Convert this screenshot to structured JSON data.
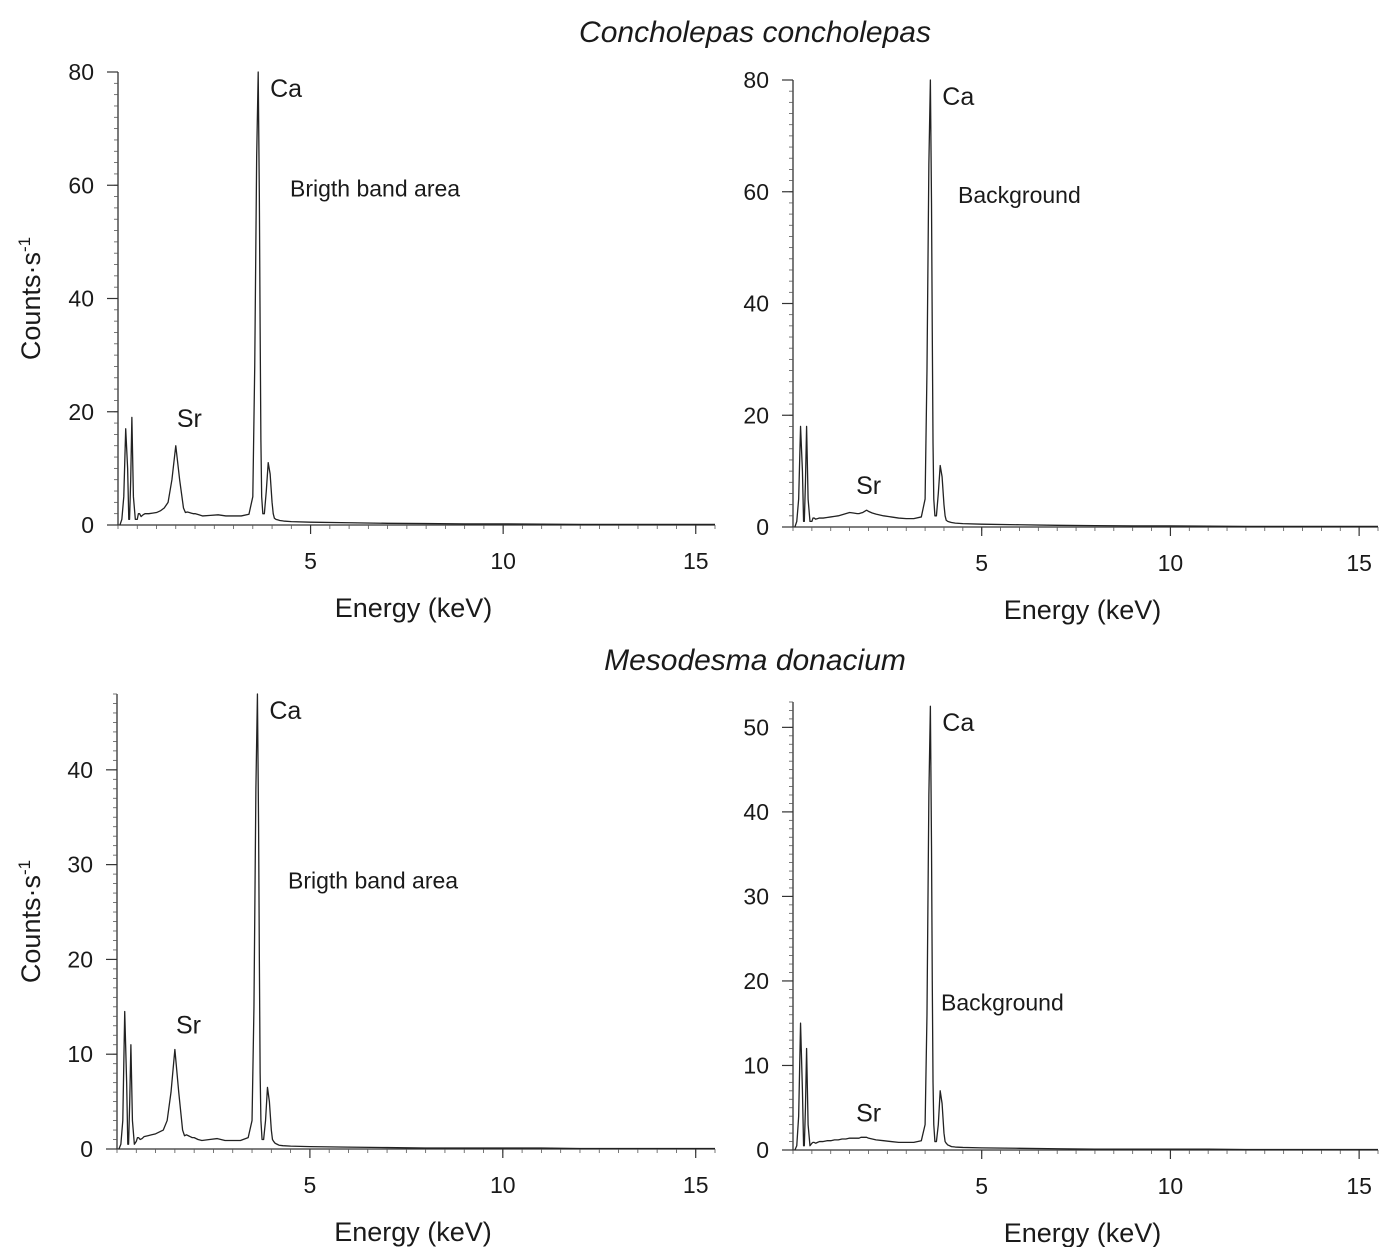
{
  "species_titles": [
    "Concholepas concholepas",
    "Mesodesma donacium"
  ],
  "chart_data": [
    {
      "type": "line",
      "species": "Concholepas concholepas",
      "annotation": "Brigth band area",
      "xlabel": "Energy (keV)",
      "ylabel_main": "Counts·s",
      "ylabel_sup": "-1",
      "xlim": [
        0,
        15.5
      ],
      "ylim": [
        0,
        80
      ],
      "xticks": [
        5,
        10,
        15
      ],
      "yticks": [
        0,
        20,
        40,
        60,
        80
      ],
      "x_minor_step": 0.5,
      "y_minor_step": 2,
      "peak_labels": [
        {
          "text": "Ca",
          "x": 3.69,
          "y": 80
        },
        {
          "text": "Sr",
          "x": 1.8,
          "y": 14.5
        }
      ],
      "x": [
        0.05,
        0.1,
        0.15,
        0.2,
        0.25,
        0.28,
        0.3,
        0.33,
        0.36,
        0.4,
        0.45,
        0.5,
        0.53,
        0.56,
        0.6,
        0.65,
        0.7,
        0.8,
        0.9,
        1.0,
        1.1,
        1.2,
        1.3,
        1.4,
        1.5,
        1.6,
        1.7,
        1.75,
        1.8,
        1.85,
        1.9,
        1.95,
        2.0,
        2.1,
        2.2,
        2.4,
        2.6,
        2.8,
        3.0,
        3.2,
        3.4,
        3.5,
        3.55,
        3.6,
        3.64,
        3.67,
        3.69,
        3.71,
        3.73,
        3.76,
        3.8,
        3.85,
        3.9,
        3.95,
        4.0,
        4.03,
        4.06,
        4.1,
        4.15,
        4.2,
        4.3,
        4.5,
        5,
        6,
        7,
        8,
        9,
        10,
        11,
        12,
        13,
        14,
        15,
        15.5
      ],
      "y": [
        0,
        1,
        5,
        17,
        10,
        1,
        1,
        8,
        19,
        5,
        1,
        1,
        2,
        2,
        1.5,
        1.8,
        2,
        2,
        2.1,
        2.2,
        2.5,
        3,
        4,
        8,
        14,
        8,
        3,
        2.2,
        2.3,
        2.2,
        2.1,
        2,
        2,
        1.8,
        1.6,
        1.7,
        1.8,
        1.6,
        1.6,
        1.6,
        1.9,
        5,
        28,
        65,
        80,
        58,
        35,
        15,
        5,
        2,
        2,
        6,
        11,
        9,
        4,
        2,
        1.2,
        1,
        0.9,
        0.8,
        0.7,
        0.6,
        0.5,
        0.4,
        0.3,
        0.25,
        0.2,
        0.2,
        0.15,
        0.1,
        0.1,
        0.1,
        0.1,
        0.1
      ]
    },
    {
      "type": "line",
      "species": "Concholepas concholepas",
      "annotation": "Background",
      "xlabel": "Energy (keV)",
      "ylabel_main": "",
      "ylabel_sup": "",
      "xlim": [
        0,
        15.5
      ],
      "ylim": [
        0,
        80
      ],
      "xticks": [
        5,
        10,
        15
      ],
      "yticks": [
        0,
        20,
        40,
        60,
        80
      ],
      "x_minor_step": 0.5,
      "y_minor_step": 2,
      "peak_labels": [
        {
          "text": "Ca",
          "x": 3.69,
          "y": 80
        },
        {
          "text": "Sr",
          "x": 1.95,
          "y": 3
        }
      ],
      "x": [
        0.05,
        0.1,
        0.15,
        0.2,
        0.25,
        0.28,
        0.3,
        0.33,
        0.36,
        0.4,
        0.45,
        0.5,
        0.53,
        0.56,
        0.6,
        0.65,
        0.7,
        0.8,
        0.9,
        1.0,
        1.1,
        1.2,
        1.3,
        1.4,
        1.5,
        1.6,
        1.7,
        1.75,
        1.8,
        1.85,
        1.9,
        1.95,
        2.0,
        2.1,
        2.2,
        2.4,
        2.6,
        2.8,
        3.0,
        3.2,
        3.4,
        3.5,
        3.55,
        3.6,
        3.64,
        3.67,
        3.69,
        3.71,
        3.73,
        3.76,
        3.8,
        3.85,
        3.9,
        3.95,
        4.0,
        4.03,
        4.06,
        4.1,
        4.15,
        4.2,
        4.3,
        4.5,
        5,
        6,
        7,
        8,
        9,
        10,
        11,
        12,
        13,
        14,
        15,
        15.5
      ],
      "y": [
        0,
        1,
        5,
        18,
        10,
        1,
        1,
        8,
        18,
        5,
        1,
        1,
        1.6,
        1.6,
        1.4,
        1.5,
        1.6,
        1.6,
        1.7,
        1.8,
        1.9,
        2,
        2.2,
        2.4,
        2.6,
        2.5,
        2.4,
        2.4,
        2.5,
        2.6,
        2.8,
        3,
        2.8,
        2.5,
        2.3,
        2,
        1.8,
        1.6,
        1.5,
        1.5,
        1.8,
        5,
        28,
        65,
        80,
        58,
        35,
        15,
        5,
        2,
        2,
        6,
        11,
        9,
        4,
        2,
        1.2,
        1,
        0.9,
        0.8,
        0.7,
        0.6,
        0.5,
        0.4,
        0.3,
        0.25,
        0.2,
        0.2,
        0.15,
        0.1,
        0.1,
        0.1,
        0.1,
        0.1
      ]
    },
    {
      "type": "line",
      "species": "Mesodesma donacium",
      "annotation": "Brigth band area",
      "xlabel": "Energy (keV)",
      "ylabel_main": "Counts·s",
      "ylabel_sup": "-1",
      "xlim": [
        0,
        15.5
      ],
      "ylim": [
        0,
        48
      ],
      "xticks": [
        5,
        10,
        15
      ],
      "yticks": [
        0,
        10,
        20,
        30,
        40
      ],
      "x_minor_step": 0.5,
      "y_minor_step": 1,
      "peak_labels": [
        {
          "text": "Ca",
          "x": 3.69,
          "y": 48
        },
        {
          "text": "Sr",
          "x": 1.8,
          "y": 10.5
        }
      ],
      "x": [
        0.05,
        0.1,
        0.15,
        0.2,
        0.25,
        0.28,
        0.3,
        0.33,
        0.36,
        0.4,
        0.45,
        0.5,
        0.53,
        0.56,
        0.6,
        0.65,
        0.7,
        0.8,
        0.9,
        1.0,
        1.1,
        1.2,
        1.3,
        1.4,
        1.5,
        1.6,
        1.7,
        1.75,
        1.8,
        1.85,
        1.9,
        1.95,
        2.0,
        2.1,
        2.2,
        2.4,
        2.6,
        2.8,
        3.0,
        3.2,
        3.4,
        3.5,
        3.55,
        3.6,
        3.64,
        3.67,
        3.69,
        3.71,
        3.73,
        3.76,
        3.8,
        3.85,
        3.9,
        3.95,
        4.0,
        4.03,
        4.06,
        4.1,
        4.15,
        4.2,
        4.3,
        4.5,
        5,
        6,
        7,
        8,
        9,
        10,
        11,
        12,
        13,
        14,
        15,
        15.5
      ],
      "y": [
        0,
        0.5,
        3,
        14.5,
        7,
        0.5,
        0.5,
        5,
        11,
        3,
        0.5,
        0.8,
        1.2,
        1.2,
        1,
        1.1,
        1.3,
        1.4,
        1.5,
        1.6,
        1.8,
        2,
        3,
        6,
        10.5,
        6,
        2,
        1.4,
        1.5,
        1.4,
        1.3,
        1.2,
        1.2,
        1,
        0.9,
        1,
        1.1,
        0.9,
        0.9,
        0.9,
        1.2,
        3,
        15,
        38,
        48,
        34,
        20,
        8,
        3,
        1,
        1,
        3,
        6.5,
        5,
        2,
        1,
        0.8,
        0.6,
        0.5,
        0.4,
        0.35,
        0.3,
        0.25,
        0.2,
        0.15,
        0.1,
        0.1,
        0.1,
        0.1,
        0.05,
        0.05,
        0.05,
        0.05,
        0.05
      ]
    },
    {
      "type": "line",
      "species": "Mesodesma donacium",
      "annotation": "Background",
      "xlabel": "Energy (keV)",
      "ylabel_main": "",
      "ylabel_sup": "",
      "xlim": [
        0,
        15.5
      ],
      "ylim": [
        0,
        53
      ],
      "xticks": [
        5,
        10,
        15
      ],
      "yticks": [
        0,
        10,
        20,
        30,
        40,
        50
      ],
      "x_minor_step": 0.5,
      "y_minor_step": 1,
      "peak_labels": [
        {
          "text": "Ca",
          "x": 3.69,
          "y": 52.5
        },
        {
          "text": "Sr",
          "x": 1.95,
          "y": 1.5
        }
      ],
      "x": [
        0.05,
        0.1,
        0.15,
        0.2,
        0.25,
        0.28,
        0.3,
        0.33,
        0.36,
        0.4,
        0.45,
        0.5,
        0.53,
        0.56,
        0.6,
        0.65,
        0.7,
        0.8,
        0.9,
        1.0,
        1.1,
        1.2,
        1.3,
        1.4,
        1.5,
        1.6,
        1.7,
        1.75,
        1.8,
        1.85,
        1.9,
        1.95,
        2.0,
        2.1,
        2.2,
        2.4,
        2.6,
        2.8,
        3.0,
        3.2,
        3.4,
        3.5,
        3.55,
        3.6,
        3.64,
        3.67,
        3.69,
        3.71,
        3.73,
        3.76,
        3.8,
        3.85,
        3.9,
        3.95,
        4.0,
        4.03,
        4.06,
        4.1,
        4.15,
        4.2,
        4.3,
        4.5,
        5,
        6,
        7,
        8,
        9,
        10,
        11,
        12,
        13,
        14,
        15,
        15.5
      ],
      "y": [
        0,
        0.5,
        4,
        15,
        7,
        0.5,
        0.5,
        5,
        12,
        3,
        0.5,
        0.8,
        0.9,
        0.9,
        0.8,
        0.9,
        1,
        1,
        1.1,
        1.1,
        1.2,
        1.2,
        1.3,
        1.3,
        1.4,
        1.4,
        1.4,
        1.4,
        1.5,
        1.5,
        1.5,
        1.5,
        1.4,
        1.3,
        1.2,
        1.1,
        1,
        0.9,
        0.9,
        0.9,
        1.1,
        3,
        16,
        42,
        52.5,
        36,
        20,
        8,
        3,
        1,
        1,
        3,
        7,
        5.5,
        2,
        1,
        0.8,
        0.6,
        0.5,
        0.4,
        0.35,
        0.3,
        0.25,
        0.2,
        0.15,
        0.1,
        0.1,
        0.1,
        0.1,
        0.05,
        0.05,
        0.05,
        0.05,
        0.05
      ]
    }
  ]
}
